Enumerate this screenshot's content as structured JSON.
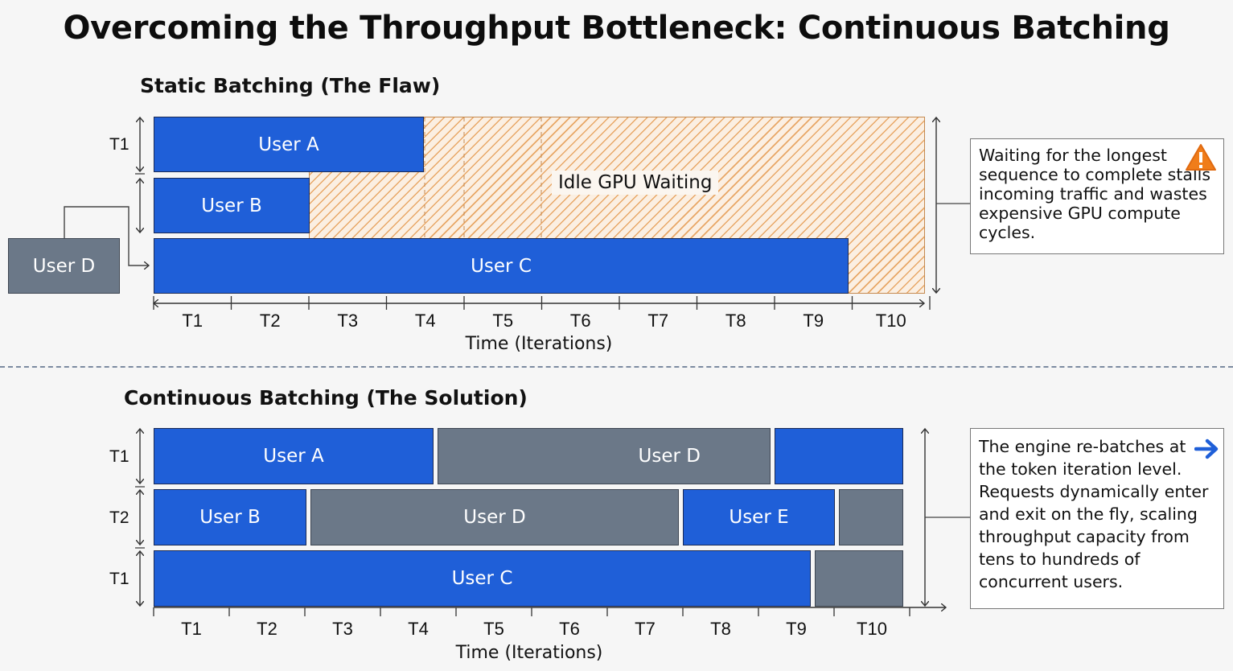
{
  "title": "Overcoming the Throughput Bottleneck: Continuous Batching",
  "static": {
    "heading": "Static Batching (The Flaw)",
    "rows": [
      "T1"
    ],
    "blocks": {
      "user_a": "User A",
      "user_b": "User B",
      "user_c": "User C",
      "user_d_waiting": "User D"
    },
    "idle_label": "Idle GPU Waiting",
    "ticks": [
      "T1",
      "T2",
      "T3",
      "T4",
      "T5",
      "T6",
      "T7",
      "T8",
      "T9",
      "T10"
    ],
    "axis_title": "Time (Iterations)",
    "note": "Waiting for the longest sequence to complete stalls incoming traffic and wastes expensive GPU compute cycles.",
    "note_icon": "warning-icon"
  },
  "continuous": {
    "heading": "Continuous Batching (The Solution)",
    "rows": [
      "T1",
      "T2",
      "T1"
    ],
    "blocks": {
      "user_a": "User A",
      "user_d_row1": "User D",
      "user_b": "User B",
      "user_d_row2": "User D",
      "user_e": "User E",
      "user_c": "User C"
    },
    "ticks": [
      "T1",
      "T2",
      "T3",
      "T4",
      "T5",
      "T6",
      "T7",
      "T8",
      "T9",
      "T10"
    ],
    "axis_title": "Time (Iterations)",
    "note": "The engine re-batches at the token iteration level. Requests dynamically enter and exit on the fly, scaling throughput capacity from tens to hundreds of concurrent users.",
    "note_icon": "right-arrow-icon"
  },
  "colors": {
    "active": "#1f5fd8",
    "queued": "#6b7888",
    "idle_hatch": "#e8a766",
    "warning": "#f07d1a"
  }
}
